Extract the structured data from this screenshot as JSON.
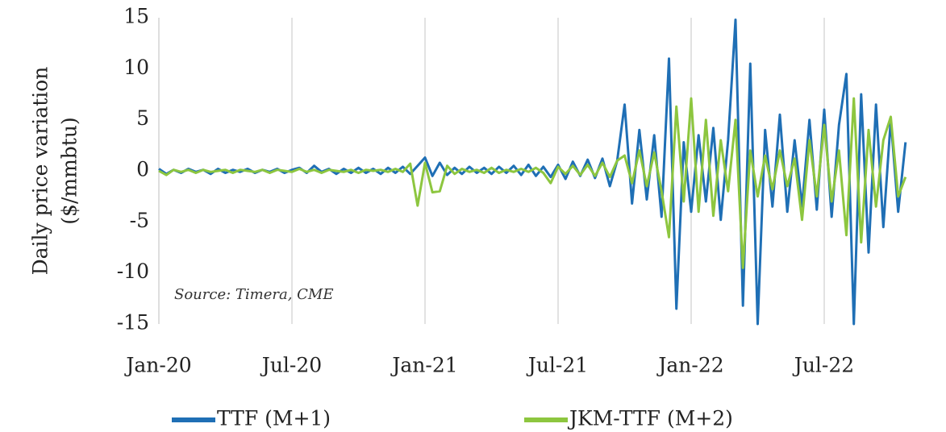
{
  "chart_data": {
    "type": "line",
    "ylabel": [
      "Daily price variation",
      "($/mmbtu)"
    ],
    "annotation": "Source: Timera, CME",
    "categories": [
      "Jan-20",
      null,
      null,
      null,
      null,
      null,
      null,
      null,
      null,
      null,
      null,
      null,
      null,
      null,
      null,
      null,
      null,
      null,
      "Jul-20",
      null,
      null,
      null,
      null,
      null,
      null,
      null,
      null,
      null,
      null,
      null,
      null,
      null,
      null,
      null,
      null,
      null,
      "Jan-21",
      null,
      null,
      null,
      null,
      null,
      null,
      null,
      null,
      null,
      null,
      null,
      null,
      null,
      null,
      null,
      null,
      null,
      "Jul-21",
      null,
      null,
      null,
      null,
      null,
      null,
      null,
      null,
      null,
      null,
      null,
      null,
      null,
      null,
      null,
      null,
      null,
      "Jan-22",
      null,
      null,
      null,
      null,
      null,
      null,
      null,
      null,
      null,
      null,
      null,
      null,
      null,
      null,
      null,
      null,
      null,
      "Jul-22",
      null,
      null,
      null,
      null,
      null,
      null,
      null,
      null,
      null,
      null,
      null
    ],
    "series": [
      {
        "name": "TTF (M+1)",
        "color": "#1f6fb5",
        "values": [
          0.2,
          -0.3,
          0.1,
          -0.2,
          0.2,
          -0.1,
          0.1,
          -0.3,
          0.2,
          -0.2,
          0.1,
          -0.1,
          0.2,
          -0.2,
          0.1,
          -0.1,
          0.2,
          -0.2,
          0.1,
          0.3,
          -0.2,
          0.5,
          -0.1,
          0.2,
          -0.3,
          0.2,
          -0.2,
          0.3,
          -0.2,
          0.2,
          -0.3,
          0.3,
          -0.2,
          0.4,
          -0.3,
          0.5,
          1.3,
          -0.5,
          0.8,
          -0.4,
          0.3,
          -0.3,
          0.4,
          -0.2,
          0.3,
          -0.3,
          0.4,
          -0.2,
          0.5,
          -0.4,
          0.6,
          -0.5,
          0.4,
          -0.6,
          0.6,
          -0.8,
          0.9,
          -0.5,
          1.1,
          -0.7,
          1.2,
          -1.5,
          1.0,
          6.5,
          -3.2,
          4.0,
          -2.8,
          3.5,
          -4.5,
          11.0,
          -13.5,
          2.8,
          -4.0,
          3.5,
          -3.0,
          4.2,
          -4.8,
          3.0,
          14.8,
          -13.2,
          10.5,
          -15,
          4.0,
          -3.5,
          5.5,
          -4.0,
          3.0,
          -3.5,
          5.0,
          -3.8,
          6.0,
          -4.5,
          4.5,
          9.5,
          -15,
          7.5,
          -8.0,
          6.5,
          -5.5,
          5.0,
          -4.0,
          2.8
        ]
      },
      {
        "name": "JKM-TTF (M+2)",
        "color": "#8dc63f",
        "values": [
          0,
          -0.4,
          0.1,
          -0.1,
          0.1,
          -0.2,
          0.1,
          -0.1,
          0,
          0.1,
          -0.2,
          0.1,
          0,
          -0.1,
          0.1,
          -0.2,
          0.1,
          0,
          -0.1,
          0.2,
          -0.1,
          0.1,
          -0.2,
          0.1,
          0,
          -0.1,
          0.1,
          -0.2,
          0.1,
          0,
          0.1,
          -0.1,
          0.2,
          -0.1,
          0.7,
          -3.4,
          0.8,
          -2.1,
          -2.0,
          0.5,
          -0.3,
          0.2,
          -0.1,
          0.1,
          -0.2,
          0.3,
          -0.2,
          0.1,
          -0.1,
          0.2,
          -0.1,
          0.3,
          -0.2,
          -1.2,
          0.4,
          -0.3,
          0.5,
          -0.4,
          0.6,
          -0.5,
          0.8,
          -0.6,
          1.0,
          1.5,
          -1.2,
          2.0,
          -1.5,
          1.8,
          -2.0,
          -6.5,
          6.3,
          -3.0,
          7.1,
          -4.0,
          5.0,
          -4.4,
          3.0,
          -2.0,
          5.0,
          -9.5,
          2.0,
          -2.5,
          1.5,
          -1.8,
          2.0,
          -1.5,
          1.2,
          -4.8,
          3.0,
          -2.5,
          4.5,
          -3.0,
          2.0,
          -6.3,
          7.1,
          -7.0,
          4.0,
          -3.5,
          3.0,
          5.3,
          -2.5,
          -0.6
        ]
      }
    ],
    "ylim": [
      -15,
      15
    ],
    "yticks": [
      -15,
      -10,
      -5,
      0,
      5,
      10,
      15
    ],
    "grid": "x",
    "legend": "bottom"
  }
}
